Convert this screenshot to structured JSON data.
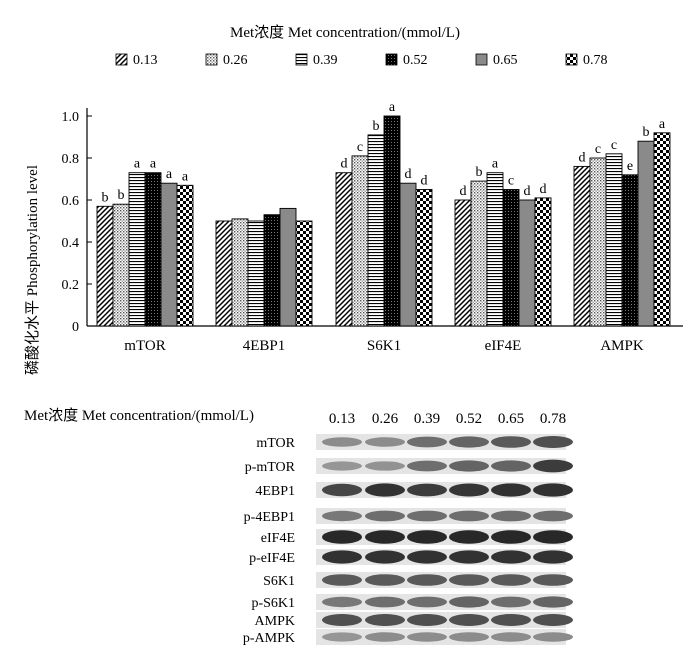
{
  "chart_data": {
    "type": "bar",
    "title": "Met浓度 Met concentration/(mmol/L)",
    "ylabel": "磷酸化水平  Phosphorylation level",
    "xlabel": "",
    "ylim": [
      0,
      1.0
    ],
    "yticks": [
      "0",
      "0.2",
      "0.4",
      "0.6",
      "0.8",
      "1.0"
    ],
    "categories": [
      "mTOR",
      "4EBP1",
      "S6K1",
      "eIF4E",
      "AMPK"
    ],
    "legend_position": "top",
    "series": [
      {
        "name": "0.13",
        "pattern": "diagonal-hatch",
        "values": [
          0.57,
          0.5,
          0.73,
          0.6,
          0.76
        ],
        "labels": [
          "b",
          "",
          "d",
          "d",
          "d"
        ]
      },
      {
        "name": "0.26",
        "pattern": "fine-dots",
        "values": [
          0.58,
          0.51,
          0.81,
          0.69,
          0.8
        ],
        "labels": [
          "b",
          "",
          "c",
          "b",
          "c"
        ]
      },
      {
        "name": "0.39",
        "pattern": "horizontal-lines",
        "values": [
          0.73,
          0.5,
          0.91,
          0.73,
          0.82
        ],
        "labels": [
          "a",
          "",
          "b",
          "a",
          "c"
        ]
      },
      {
        "name": "0.52",
        "pattern": "dense-dark",
        "values": [
          0.73,
          0.53,
          1.0,
          0.65,
          0.72
        ],
        "labels": [
          "a",
          "",
          "a",
          "c",
          "e"
        ]
      },
      {
        "name": "0.65",
        "pattern": "gray-solid",
        "values": [
          0.68,
          0.56,
          0.68,
          0.6,
          0.88
        ],
        "labels": [
          "a",
          "",
          "d",
          "d",
          "b"
        ]
      },
      {
        "name": "0.78",
        "pattern": "checkerboard",
        "values": [
          0.67,
          0.5,
          0.65,
          0.61,
          0.92
        ],
        "labels": [
          "a",
          "",
          "d",
          "d",
          "a"
        ]
      }
    ]
  },
  "western_blot": {
    "header": "Met浓度  Met concentration/(mmol/L)",
    "concentrations": [
      "0.13",
      "0.26",
      "0.39",
      "0.52",
      "0.65",
      "0.78"
    ],
    "bands": [
      {
        "label": "mTOR",
        "intensity": [
          0.45,
          0.45,
          0.6,
          0.65,
          0.7,
          0.75
        ]
      },
      {
        "label": "p-mTOR",
        "intensity": [
          0.4,
          0.42,
          0.6,
          0.65,
          0.65,
          0.85
        ]
      },
      {
        "label": "4EBP1",
        "intensity": [
          0.8,
          0.9,
          0.85,
          0.88,
          0.9,
          0.9
        ]
      },
      {
        "label": "p-4EBP1",
        "intensity": [
          0.55,
          0.6,
          0.6,
          0.6,
          0.6,
          0.6
        ]
      },
      {
        "label": "eIF4E",
        "intensity": [
          0.95,
          0.95,
          0.95,
          0.95,
          0.95,
          0.95
        ]
      },
      {
        "label": "p-eIF4E",
        "intensity": [
          0.9,
          0.9,
          0.9,
          0.9,
          0.9,
          0.9
        ]
      },
      {
        "label": "S6K1",
        "intensity": [
          0.7,
          0.7,
          0.7,
          0.7,
          0.7,
          0.7
        ]
      },
      {
        "label": "p-S6K1",
        "intensity": [
          0.55,
          0.6,
          0.6,
          0.65,
          0.6,
          0.65
        ]
      },
      {
        "label": "AMPK",
        "intensity": [
          0.75,
          0.75,
          0.75,
          0.75,
          0.75,
          0.75
        ]
      },
      {
        "label": "p-AMPK",
        "intensity": [
          0.4,
          0.45,
          0.45,
          0.45,
          0.45,
          0.45
        ]
      }
    ]
  }
}
